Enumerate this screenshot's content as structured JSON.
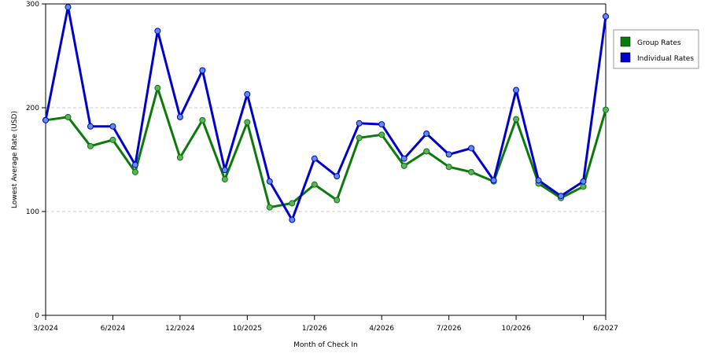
{
  "chart_data": {
    "type": "line",
    "x_tick_labels": [
      "3/2024",
      "6/2024",
      "12/2024",
      "10/2025",
      "1/2026",
      "4/2026",
      "7/2026",
      "10/2026",
      "",
      "6/2027"
    ],
    "x_tick_index": [
      0,
      3,
      6,
      9,
      12,
      15,
      18,
      21,
      24,
      25
    ],
    "n_points": 26,
    "xlabel": "Month of Check In",
    "ylabel": "Lowest Average Rate (USD)",
    "ylim": [
      0,
      300
    ],
    "yticks": [
      0,
      100,
      200,
      300
    ],
    "grid": true,
    "legend_position": "right",
    "series": [
      {
        "name": "Group Rates",
        "color": "#0a7a0a",
        "marker_color": "#5fb05f",
        "values": [
          188,
          191,
          163,
          169,
          138,
          219,
          152,
          188,
          131,
          186,
          104,
          108,
          126,
          111,
          171,
          174,
          144,
          158,
          143,
          138,
          129,
          189,
          127,
          113,
          124,
          198
        ]
      },
      {
        "name": "Individual Rates",
        "color": "#0000cc",
        "marker_color": "#5f8fe0",
        "values": [
          188,
          297,
          182,
          182,
          145,
          274,
          191,
          236,
          140,
          213,
          129,
          92,
          151,
          134,
          185,
          184,
          151,
          175,
          155,
          161,
          130,
          217,
          130,
          115,
          129,
          288
        ]
      }
    ]
  }
}
